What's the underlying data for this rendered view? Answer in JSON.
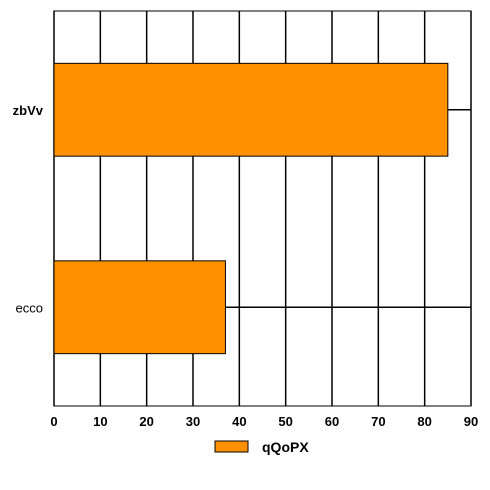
{
  "chart_data": {
    "type": "bar",
    "orientation": "horizontal",
    "categories": [
      "zbVv",
      "ecco"
    ],
    "series": [
      {
        "name": "qQoPX",
        "values": [
          85,
          37
        ]
      }
    ],
    "xlim": [
      0,
      90
    ],
    "xticks": [
      0,
      10,
      20,
      30,
      40,
      50,
      60,
      70,
      80,
      90
    ],
    "grid": true,
    "legend_position": "bottom",
    "colors": {
      "bar_fill": "#ff9100",
      "bar_stroke": "#000000",
      "grid": "#000000",
      "background": "#ffffff"
    },
    "category_label_styles": [
      "bold",
      "normal"
    ]
  }
}
